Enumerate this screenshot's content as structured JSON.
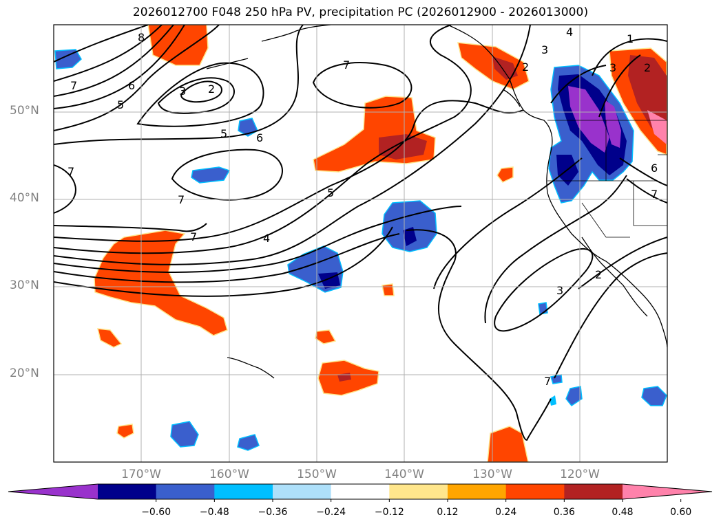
{
  "title": "2026012700 F048 250 hPa PV, precipitation PC (2026012900 - 2026013000)",
  "map": {
    "lat_labels": [
      "50°N",
      "40°N",
      "30°N",
      "20°N"
    ],
    "lon_labels": [
      "170°W",
      "160°W",
      "150°W",
      "140°W",
      "130°W",
      "120°W"
    ],
    "contour_labels": [
      "8",
      "7",
      "6",
      "5",
      "3",
      "2",
      "7",
      "5",
      "6",
      "7",
      "7",
      "7",
      "5",
      "4",
      "3",
      "2",
      "4",
      "3",
      "1",
      "2",
      "6",
      "7",
      "3",
      "2",
      "7"
    ]
  },
  "colorbar": {
    "colors": [
      "#9932CC",
      "#00008B",
      "#3A5FCD",
      "#00BFFF",
      "#AEE0FA",
      "#FFFFFF",
      "#FFE68C",
      "#FFA500",
      "#FF4500",
      "#B22222",
      "#FF82AB"
    ],
    "ticks": [
      "−0.60",
      "−0.48",
      "−0.36",
      "−0.24",
      "−0.12",
      "0.12",
      "0.24",
      "0.36",
      "0.48",
      "0.60"
    ]
  }
}
